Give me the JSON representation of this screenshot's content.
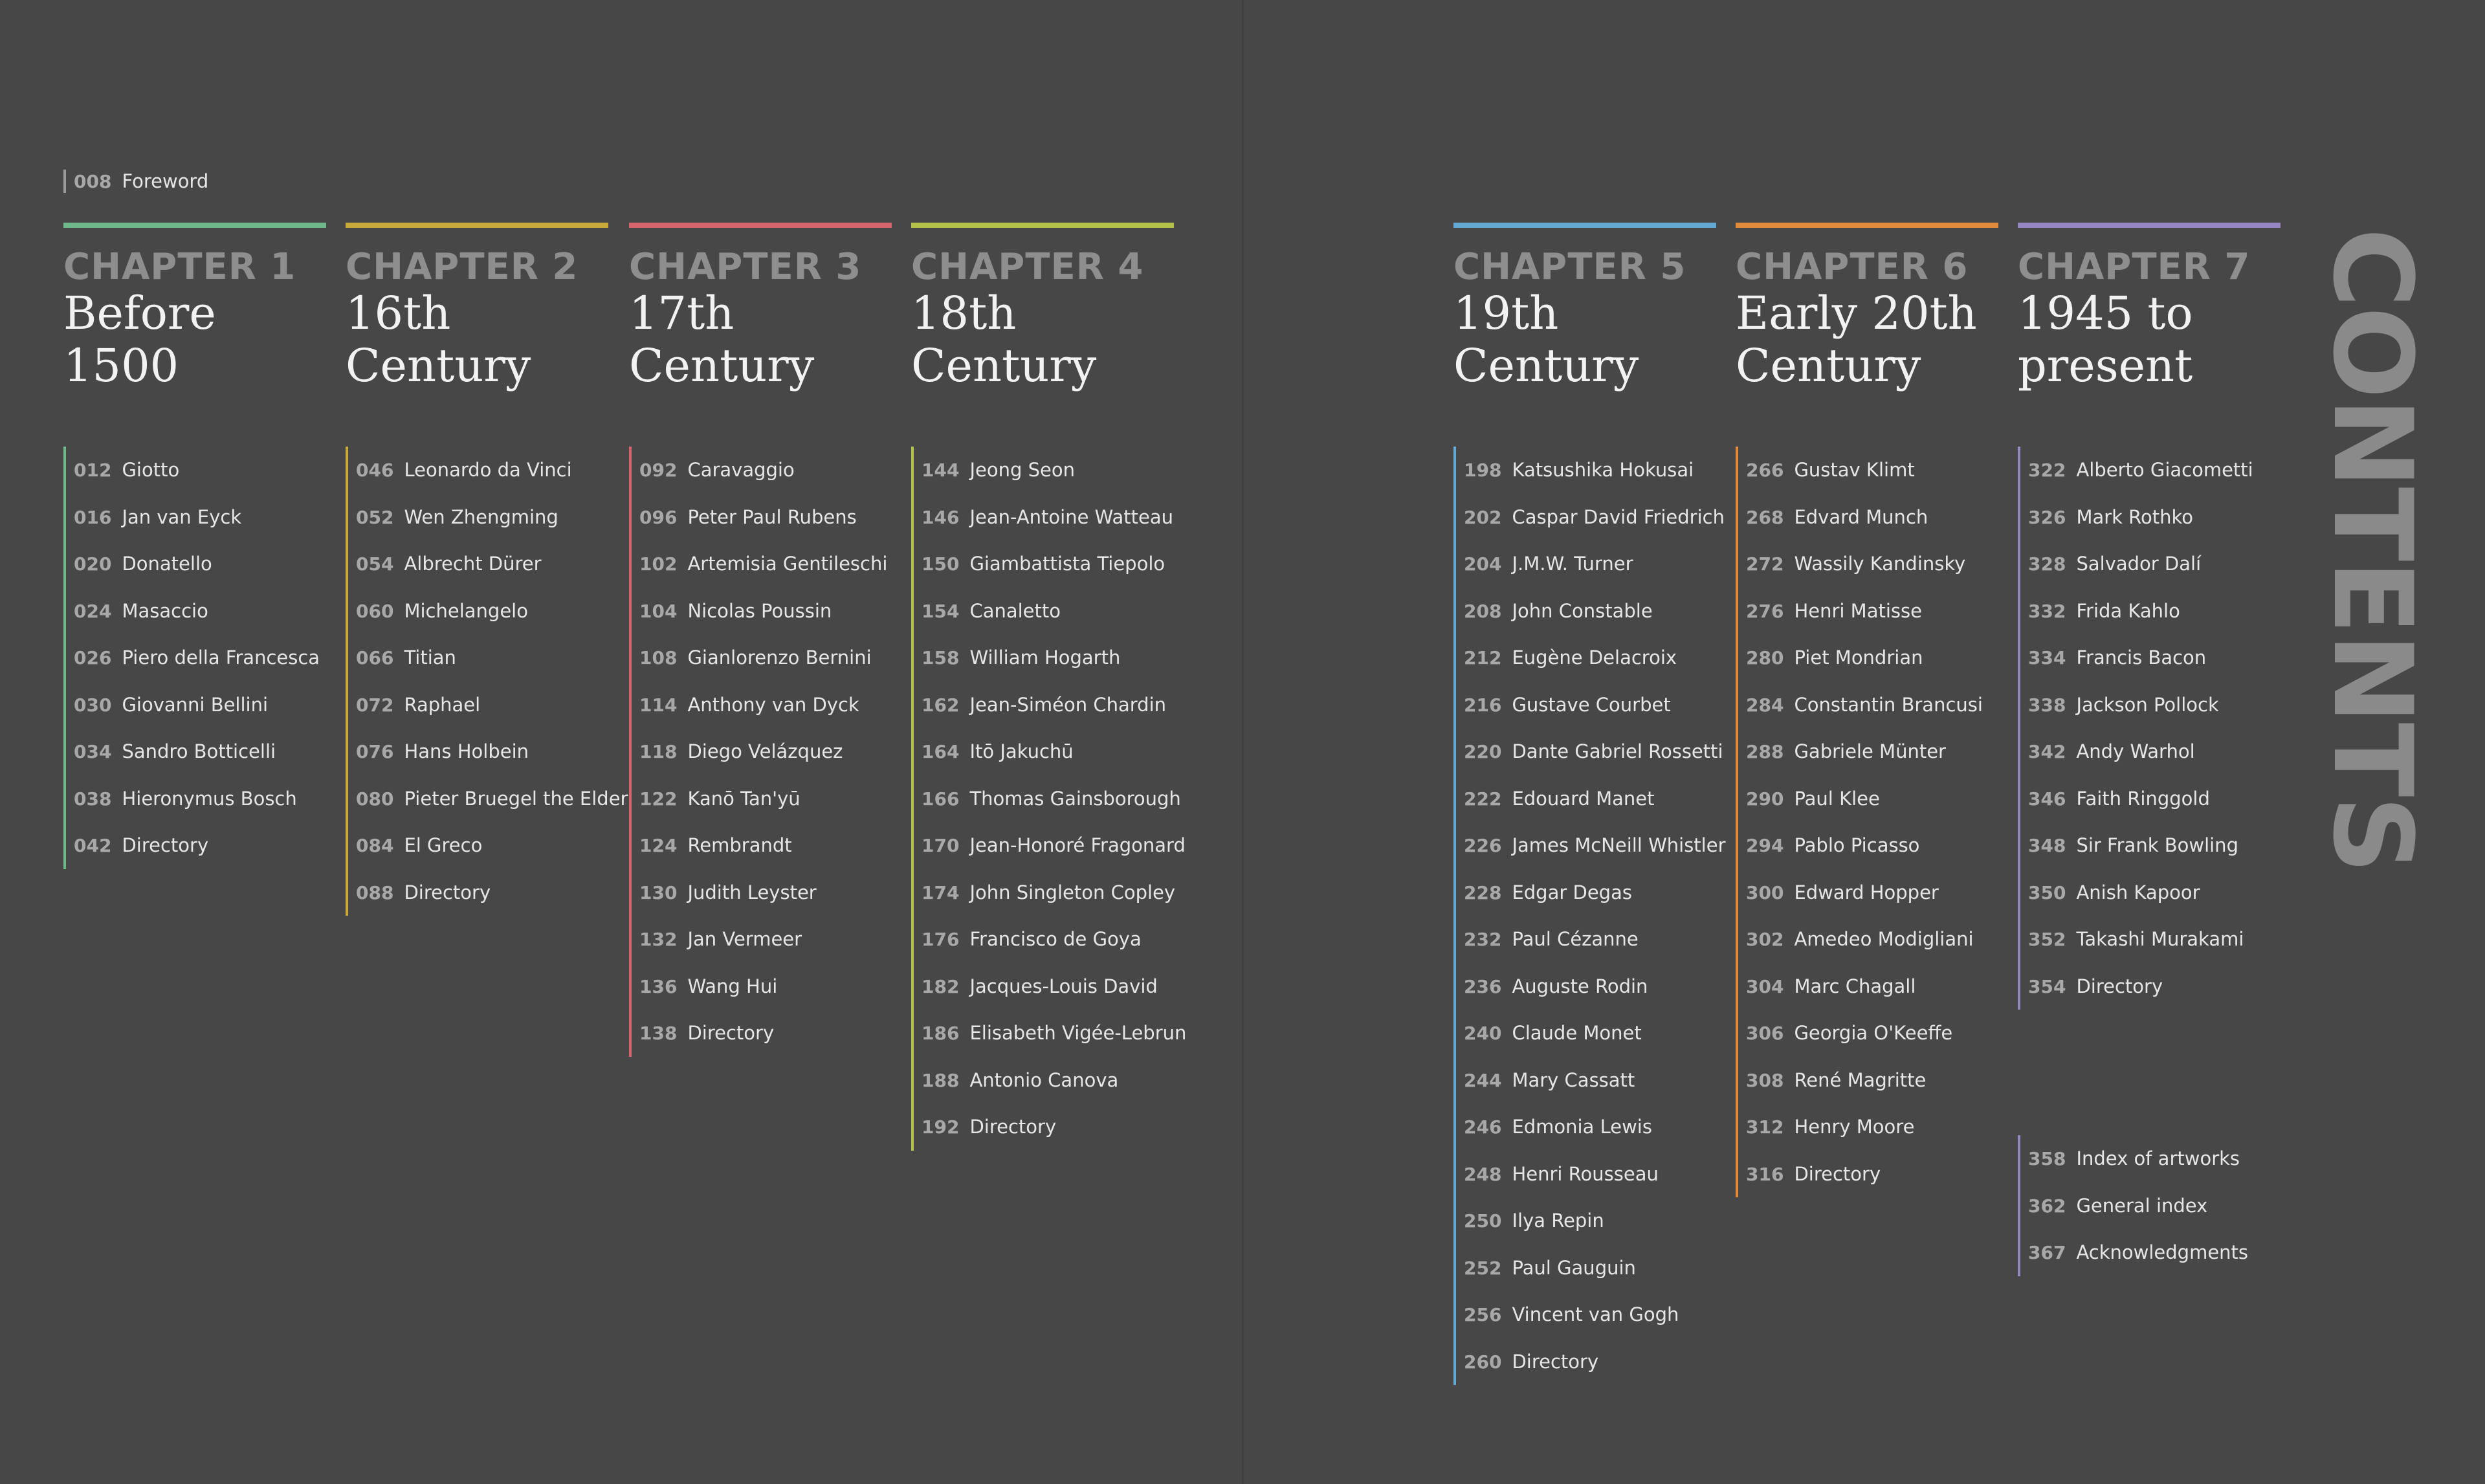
{
  "foreword": {
    "page": "008",
    "name": "Foreword"
  },
  "side_title": "CONTENTS",
  "chapters": [
    {
      "label": "CHAPTER 1",
      "title_lines": [
        "Before",
        "1500"
      ],
      "entries": [
        {
          "page": "012",
          "name": "Giotto"
        },
        {
          "page": "016",
          "name": "Jan van Eyck"
        },
        {
          "page": "020",
          "name": "Donatello"
        },
        {
          "page": "024",
          "name": "Masaccio"
        },
        {
          "page": "026",
          "name": "Piero della Francesca"
        },
        {
          "page": "030",
          "name": "Giovanni Bellini"
        },
        {
          "page": "034",
          "name": "Sandro Botticelli"
        },
        {
          "page": "038",
          "name": "Hieronymus Bosch"
        },
        {
          "page": "042",
          "name": "Directory"
        }
      ]
    },
    {
      "label": "CHAPTER 2",
      "title_lines": [
        "16th",
        "Century"
      ],
      "entries": [
        {
          "page": "046",
          "name": "Leonardo da Vinci"
        },
        {
          "page": "052",
          "name": "Wen Zhengming"
        },
        {
          "page": "054",
          "name": "Albrecht Dürer"
        },
        {
          "page": "060",
          "name": "Michelangelo"
        },
        {
          "page": "066",
          "name": "Titian"
        },
        {
          "page": "072",
          "name": "Raphael"
        },
        {
          "page": "076",
          "name": "Hans Holbein"
        },
        {
          "page": "080",
          "name": "Pieter Bruegel the Elder"
        },
        {
          "page": "084",
          "name": "El Greco"
        },
        {
          "page": "088",
          "name": "Directory"
        }
      ]
    },
    {
      "label": "CHAPTER 3",
      "title_lines": [
        "17th",
        "Century"
      ],
      "entries": [
        {
          "page": "092",
          "name": "Caravaggio"
        },
        {
          "page": "096",
          "name": "Peter Paul Rubens"
        },
        {
          "page": "102",
          "name": "Artemisia Gentileschi"
        },
        {
          "page": "104",
          "name": "Nicolas Poussin"
        },
        {
          "page": "108",
          "name": "Gianlorenzo Bernini"
        },
        {
          "page": "114",
          "name": "Anthony van Dyck"
        },
        {
          "page": "118",
          "name": "Diego Velázquez"
        },
        {
          "page": "122",
          "name": "Kanō Tan'yū"
        },
        {
          "page": "124",
          "name": "Rembrandt"
        },
        {
          "page": "130",
          "name": "Judith Leyster"
        },
        {
          "page": "132",
          "name": "Jan Vermeer"
        },
        {
          "page": "136",
          "name": "Wang Hui"
        },
        {
          "page": "138",
          "name": "Directory"
        }
      ]
    },
    {
      "label": "CHAPTER 4",
      "title_lines": [
        "18th",
        "Century"
      ],
      "entries": [
        {
          "page": "144",
          "name": "Jeong Seon"
        },
        {
          "page": "146",
          "name": "Jean-Antoine Watteau"
        },
        {
          "page": "150",
          "name": "Giambattista Tiepolo"
        },
        {
          "page": "154",
          "name": "Canaletto"
        },
        {
          "page": "158",
          "name": "William Hogarth"
        },
        {
          "page": "162",
          "name": "Jean-Siméon Chardin"
        },
        {
          "page": "164",
          "name": "Itō Jakuchū"
        },
        {
          "page": "166",
          "name": "Thomas Gainsborough"
        },
        {
          "page": "170",
          "name": "Jean-Honoré Fragonard"
        },
        {
          "page": "174",
          "name": "John Singleton Copley"
        },
        {
          "page": "176",
          "name": "Francisco de Goya"
        },
        {
          "page": "182",
          "name": "Jacques-Louis David"
        },
        {
          "page": "186",
          "name": "Elisabeth Vigée-Lebrun"
        },
        {
          "page": "188",
          "name": "Antonio Canova"
        },
        {
          "page": "192",
          "name": "Directory"
        }
      ]
    },
    {
      "label": "CHAPTER 5",
      "title_lines": [
        "19th",
        "Century"
      ],
      "entries": [
        {
          "page": "198",
          "name": "Katsushika Hokusai"
        },
        {
          "page": "202",
          "name": "Caspar David Friedrich"
        },
        {
          "page": "204",
          "name": "J.M.W. Turner"
        },
        {
          "page": "208",
          "name": "John Constable"
        },
        {
          "page": "212",
          "name": "Eugène Delacroix"
        },
        {
          "page": "216",
          "name": "Gustave Courbet"
        },
        {
          "page": "220",
          "name": "Dante Gabriel Rossetti"
        },
        {
          "page": "222",
          "name": "Edouard Manet"
        },
        {
          "page": "226",
          "name": "James McNeill Whistler"
        },
        {
          "page": "228",
          "name": "Edgar Degas"
        },
        {
          "page": "232",
          "name": "Paul Cézanne"
        },
        {
          "page": "236",
          "name": "Auguste Rodin"
        },
        {
          "page": "240",
          "name": "Claude Monet"
        },
        {
          "page": "244",
          "name": "Mary Cassatt"
        },
        {
          "page": "246",
          "name": "Edmonia Lewis"
        },
        {
          "page": "248",
          "name": "Henri Rousseau"
        },
        {
          "page": "250",
          "name": "Ilya Repin"
        },
        {
          "page": "252",
          "name": "Paul Gauguin"
        },
        {
          "page": "256",
          "name": "Vincent van Gogh"
        },
        {
          "page": "260",
          "name": "Directory"
        }
      ]
    },
    {
      "label": "CHAPTER 6",
      "title_lines": [
        "Early 20th",
        "Century"
      ],
      "entries": [
        {
          "page": "266",
          "name": "Gustav Klimt"
        },
        {
          "page": "268",
          "name": "Edvard Munch"
        },
        {
          "page": "272",
          "name": "Wassily Kandinsky"
        },
        {
          "page": "276",
          "name": "Henri Matisse"
        },
        {
          "page": "280",
          "name": "Piet Mondrian"
        },
        {
          "page": "284",
          "name": "Constantin Brancusi"
        },
        {
          "page": "288",
          "name": "Gabriele Münter"
        },
        {
          "page": "290",
          "name": "Paul Klee"
        },
        {
          "page": "294",
          "name": "Pablo Picasso"
        },
        {
          "page": "300",
          "name": "Edward Hopper"
        },
        {
          "page": "302",
          "name": "Amedeo Modigliani"
        },
        {
          "page": "304",
          "name": "Marc Chagall"
        },
        {
          "page": "306",
          "name": "Georgia O'Keeffe"
        },
        {
          "page": "308",
          "name": "René Magritte"
        },
        {
          "page": "312",
          "name": "Henry Moore"
        },
        {
          "page": "316",
          "name": "Directory"
        }
      ]
    },
    {
      "label": "CHAPTER 7",
      "title_lines": [
        "1945 to",
        "present"
      ],
      "entries": [
        {
          "page": "322",
          "name": "Alberto Giacometti"
        },
        {
          "page": "326",
          "name": "Mark Rothko"
        },
        {
          "page": "328",
          "name": "Salvador Dalí"
        },
        {
          "page": "332",
          "name": "Frida Kahlo"
        },
        {
          "page": "334",
          "name": "Francis Bacon"
        },
        {
          "page": "338",
          "name": "Jackson Pollock"
        },
        {
          "page": "342",
          "name": "Andy Warhol"
        },
        {
          "page": "346",
          "name": "Faith Ringgold"
        },
        {
          "page": "348",
          "name": "Sir Frank Bowling"
        },
        {
          "page": "350",
          "name": "Anish Kapoor"
        },
        {
          "page": "352",
          "name": "Takashi Murakami"
        },
        {
          "page": "354",
          "name": "Directory"
        }
      ]
    }
  ],
  "back_matter": [
    {
      "page": "358",
      "name": "Index of artworks"
    },
    {
      "page": "362",
      "name": "General index"
    },
    {
      "page": "367",
      "name": "Acknowledgments"
    }
  ]
}
